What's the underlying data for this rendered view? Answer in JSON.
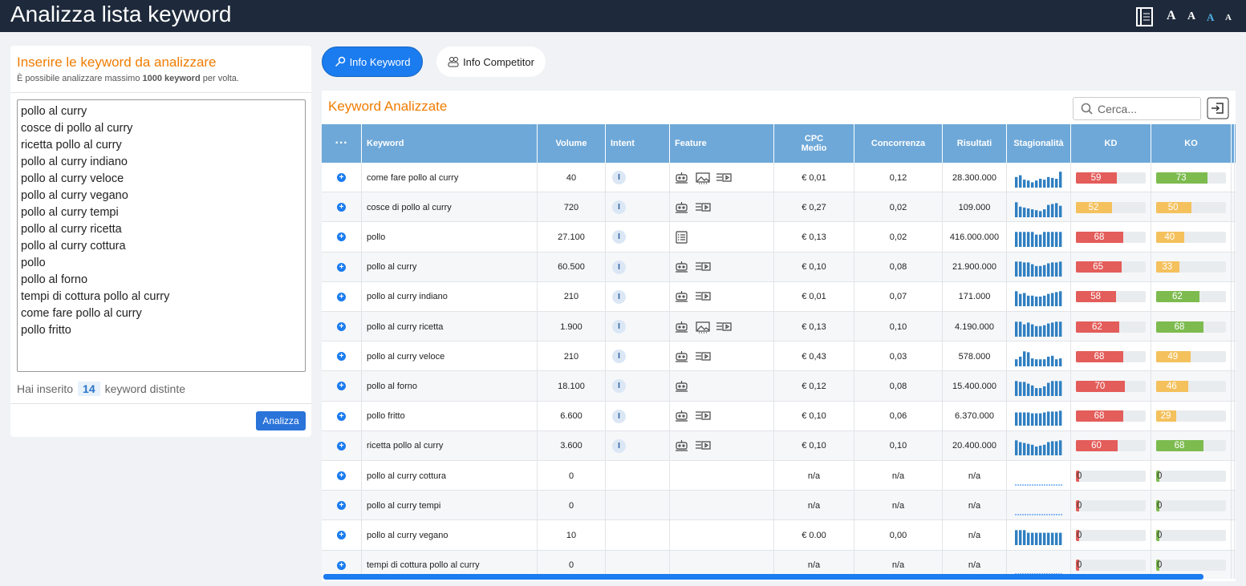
{
  "header": {
    "title": "Analizza lista keyword",
    "font_sizes": [
      "A",
      "A",
      "A",
      "A"
    ]
  },
  "input_panel": {
    "title": "Inserire le keyword da analizzare",
    "note": [
      "È possibile analizzare massimo",
      "1000 keyword",
      "per volta."
    ],
    "lines": [
      "pollo al curry",
      "cosce di pollo al curry",
      "ricetta pollo al curry",
      "pollo al curry indiano",
      "pollo al curry veloce",
      "pollo al curry vegano",
      "pollo al curry tempi",
      "pollo al curry ricetta",
      "pollo al curry cottura",
      "pollo",
      "pollo al forno",
      "tempi di cottura pollo al curry",
      "come fare pollo al curry",
      "pollo fritto"
    ],
    "count_text": [
      "Hai inserito",
      "14",
      "keyword distinte"
    ],
    "button": "Analizza"
  },
  "tabs": [
    "Info Keyword",
    "Info Competitor"
  ],
  "table": {
    "title": "Keyword Analizzate",
    "search_placeholder": "Cerca...",
    "columns": [
      "···",
      "Keyword",
      "Volume",
      "Intent",
      "Feature",
      [
        "CPC",
        "Medio"
      ],
      "Concorrenza",
      "Risultati",
      "Stagionalità",
      "KD",
      "KO"
    ],
    "rows": [
      {
        "keyword": "come fare pollo al curry",
        "volume": "40",
        "intent": "I",
        "cpc": "€ 0,01",
        "concorrenza": "0,12",
        "risultati": "28.300.000",
        "stagionalita": [
          60,
          70,
          45,
          40,
          30,
          40,
          50,
          45,
          60,
          55,
          50,
          90
        ],
        "kd": {
          "value": 59,
          "color": "#e35d5a"
        },
        "ko": {
          "value": 73,
          "color": "#7dbb4f"
        }
      },
      {
        "keyword": "cosce di pollo al curry",
        "volume": "720",
        "intent": "I",
        "cpc": "€ 0,27",
        "concorrenza": "0,02",
        "risultati": "109.000",
        "stagionalita": [
          85,
          60,
          55,
          50,
          45,
          40,
          35,
          45,
          70,
          75,
          80,
          65
        ],
        "kd": {
          "value": 52,
          "color": "#f4c15d"
        },
        "ko": {
          "value": 50,
          "color": "#f4c15d"
        }
      },
      {
        "keyword": "pollo",
        "volume": "27.100",
        "intent": "I",
        "cpc": "€ 0,13",
        "concorrenza": "0,02",
        "risultati": "416.000.000",
        "stagionalita": [
          85,
          85,
          85,
          85,
          85,
          70,
          70,
          85,
          85,
          85,
          85,
          85
        ],
        "kd": {
          "value": 68,
          "color": "#e35d5a"
        },
        "ko": {
          "value": 40,
          "color": "#f4c15d"
        }
      },
      {
        "keyword": "pollo al curry",
        "volume": "60.500",
        "intent": "I",
        "cpc": "€ 0,10",
        "concorrenza": "0,08",
        "risultati": "21.900.000",
        "stagionalita": [
          85,
          85,
          80,
          80,
          70,
          60,
          60,
          65,
          75,
          80,
          80,
          85
        ],
        "kd": {
          "value": 65,
          "color": "#e35d5a"
        },
        "ko": {
          "value": 33,
          "color": "#f4c15d"
        }
      },
      {
        "keyword": "pollo al curry indiano",
        "volume": "210",
        "intent": "I",
        "cpc": "€ 0,01",
        "concorrenza": "0,07",
        "risultati": "171.000",
        "stagionalita": [
          85,
          70,
          75,
          60,
          60,
          55,
          55,
          60,
          70,
          75,
          80,
          85
        ],
        "kd": {
          "value": 58,
          "color": "#e35d5a"
        },
        "ko": {
          "value": 62,
          "color": "#7dbb4f"
        }
      },
      {
        "keyword": "pollo al curry ricetta",
        "volume": "1.900",
        "intent": "I",
        "cpc": "€ 0,13",
        "concorrenza": "0,10",
        "risultati": "4.190.000",
        "stagionalita": [
          85,
          85,
          70,
          80,
          70,
          60,
          60,
          65,
          75,
          80,
          85,
          85
        ],
        "kd": {
          "value": 62,
          "color": "#e35d5a"
        },
        "ko": {
          "value": 68,
          "color": "#7dbb4f"
        }
      },
      {
        "keyword": "pollo al curry veloce",
        "volume": "210",
        "intent": "I",
        "cpc": "€ 0,43",
        "concorrenza": "0,03",
        "risultati": "578.000",
        "stagionalita": [
          40,
          55,
          85,
          80,
          45,
          40,
          40,
          40,
          55,
          60,
          40,
          45
        ],
        "kd": {
          "value": 68,
          "color": "#e35d5a"
        },
        "ko": {
          "value": 49,
          "color": "#f4c15d"
        }
      },
      {
        "keyword": "pollo al forno",
        "volume": "18.100",
        "intent": "I",
        "cpc": "€ 0,12",
        "concorrenza": "0,08",
        "risultati": "15.400.000",
        "stagionalita": [
          85,
          80,
          80,
          70,
          60,
          45,
          45,
          55,
          75,
          85,
          85,
          85
        ],
        "kd": {
          "value": 70,
          "color": "#e35d5a"
        },
        "ko": {
          "value": 46,
          "color": "#f4c15d"
        }
      },
      {
        "keyword": "pollo fritto",
        "volume": "6.600",
        "intent": "I",
        "cpc": "€ 0,10",
        "concorrenza": "0,06",
        "risultati": "6.370.000",
        "stagionalita": [
          75,
          75,
          75,
          75,
          70,
          70,
          70,
          75,
          80,
          80,
          80,
          85
        ],
        "kd": {
          "value": 68,
          "color": "#e35d5a"
        },
        "ko": {
          "value": 29,
          "color": "#f4c15d"
        }
      },
      {
        "keyword": "ricetta pollo al curry",
        "volume": "3.600",
        "intent": "I",
        "cpc": "€ 0,10",
        "concorrenza": "0,10",
        "risultati": "20.400.000",
        "stagionalita": [
          85,
          75,
          70,
          65,
          60,
          50,
          55,
          60,
          75,
          80,
          80,
          85
        ],
        "kd": {
          "value": 60,
          "color": "#e35d5a"
        },
        "ko": {
          "value": 68,
          "color": "#7dbb4f"
        }
      },
      {
        "keyword": "pollo al curry cottura",
        "volume": "0",
        "intent": null,
        "cpc": "n/a",
        "concorrenza": "n/a",
        "risultati": "n/a",
        "stagionalita": null,
        "kd": {
          "value": 0,
          "color": "#e35d5a"
        },
        "ko": {
          "value": 0,
          "color": "#7dbb4f"
        }
      },
      {
        "keyword": "pollo al curry tempi",
        "volume": "0",
        "intent": null,
        "cpc": "n/a",
        "concorrenza": "n/a",
        "risultati": "n/a",
        "stagionalita": null,
        "kd": {
          "value": 0,
          "color": "#e35d5a"
        },
        "ko": {
          "value": 0,
          "color": "#7dbb4f"
        }
      },
      {
        "keyword": "pollo al curry vegano",
        "volume": "10",
        "intent": null,
        "cpc": "€ 0.00",
        "concorrenza": "0,00",
        "risultati": "n/a",
        "stagionalita": [
          85,
          85,
          85,
          70,
          70,
          70,
          70,
          70,
          70,
          70,
          70,
          70
        ],
        "kd": {
          "value": 0,
          "color": "#e35d5a"
        },
        "ko": {
          "value": 0,
          "color": "#7dbb4f"
        }
      },
      {
        "keyword": "tempi di cottura pollo al curry",
        "volume": "0",
        "intent": null,
        "cpc": "n/a",
        "concorrenza": "n/a",
        "risultati": "n/a",
        "stagionalita": null,
        "kd": {
          "value": 0,
          "color": "#e35d5a"
        },
        "ko": {
          "value": 0,
          "color": "#7dbb4f"
        }
      }
    ]
  }
}
